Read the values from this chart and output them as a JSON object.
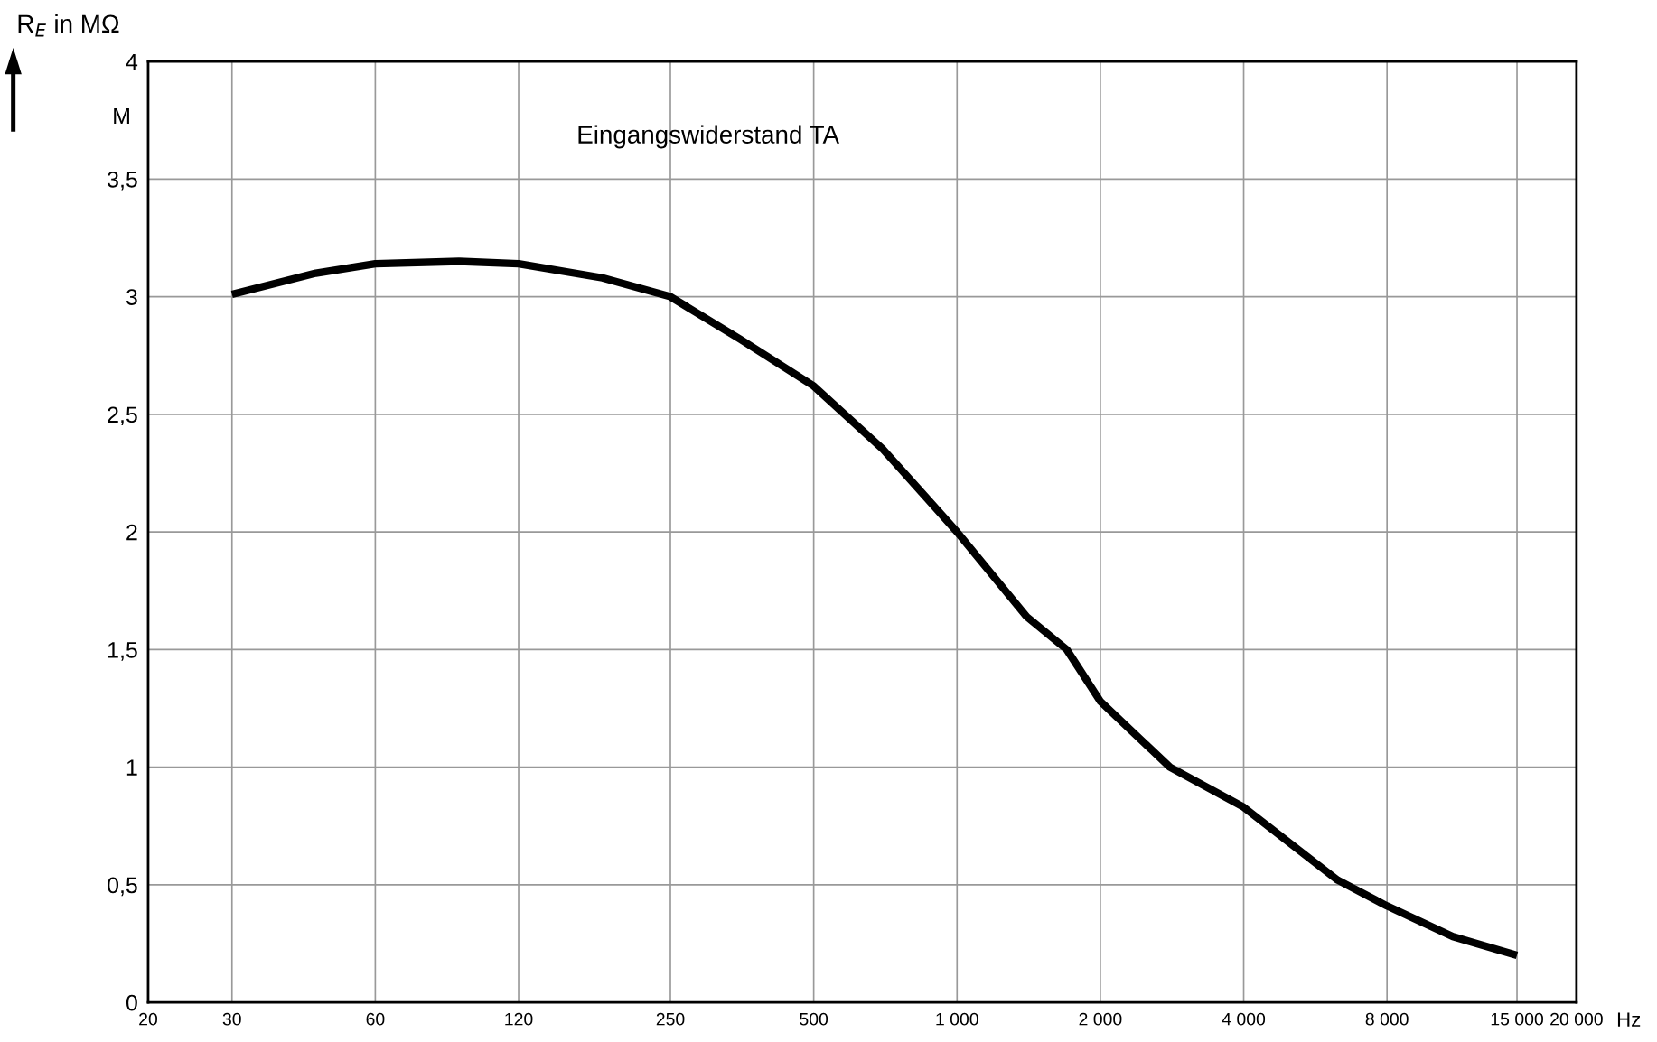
{
  "chart_data": {
    "type": "line",
    "title": "Eingangswiderstand TA",
    "ylabel": "R$_{E}$ in MΩ",
    "xlabel": "Hz",
    "annotations": [
      "M"
    ],
    "log": "x",
    "grid": true,
    "marker": "none",
    "line_style": "solid",
    "xlim": [
      20,
      20000
    ],
    "xticks": [
      20,
      30,
      60,
      120,
      250,
      500,
      {
        "value": 1000,
        "label": "1 000"
      },
      {
        "value": 2000,
        "label": "2 000"
      },
      {
        "value": 4000,
        "label": "4 000"
      },
      {
        "value": 8000,
        "label": "8 000"
      },
      {
        "value": 15000,
        "label": "15 000"
      },
      {
        "value": 20000,
        "label": "20 000"
      }
    ],
    "ylim": [
      0,
      4
    ],
    "yticks": [
      0,
      {
        "value": 0.5,
        "label": "0,5"
      },
      1,
      {
        "value": 1.5,
        "label": "1,5"
      },
      2,
      {
        "value": 2.5,
        "label": "2,5"
      },
      3,
      {
        "value": 3.5,
        "label": "3,5"
      },
      4
    ],
    "series": [
      {
        "color": "#000000",
        "x": [
          30,
          45,
          60,
          90,
          120,
          180,
          250,
          350,
          500,
          700,
          1000,
          1400,
          1700,
          2000,
          2800,
          4000,
          6300,
          8000,
          11000,
          15000
        ],
        "values": [
          3.01,
          3.1,
          3.14,
          3.15,
          3.14,
          3.08,
          3.0,
          2.82,
          2.62,
          2.35,
          2.0,
          1.64,
          1.5,
          1.28,
          1.0,
          0.83,
          0.52,
          0.41,
          0.28,
          0.2
        ]
      }
    ]
  }
}
